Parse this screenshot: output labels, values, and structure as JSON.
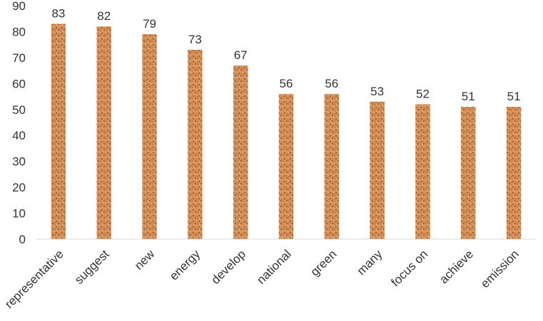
{
  "chart_data": {
    "type": "bar",
    "title": "",
    "xlabel": "",
    "ylabel": "",
    "categories": [
      "representative",
      "suggest",
      "new",
      "energy",
      "develop",
      "national",
      "green",
      "many",
      "focus on",
      "achieve",
      "emission"
    ],
    "values": [
      83,
      82,
      79,
      73,
      67,
      56,
      56,
      53,
      52,
      51,
      51
    ],
    "data_labels": [
      "83",
      "82",
      "79",
      "73",
      "67",
      "56",
      "56",
      "53",
      "52",
      "51",
      "51"
    ],
    "ylim": [
      0,
      90
    ],
    "yticks": [
      "0",
      "10",
      "20",
      "30",
      "40",
      "50",
      "60",
      "70",
      "80",
      "90"
    ],
    "grid": false,
    "legend": "none",
    "colors": {
      "bar_base": "#d4915a",
      "bar_dark": "#a8602e",
      "bar_light": "#e8b07c",
      "axis": "#d9d9d9",
      "text": "#333333"
    }
  }
}
